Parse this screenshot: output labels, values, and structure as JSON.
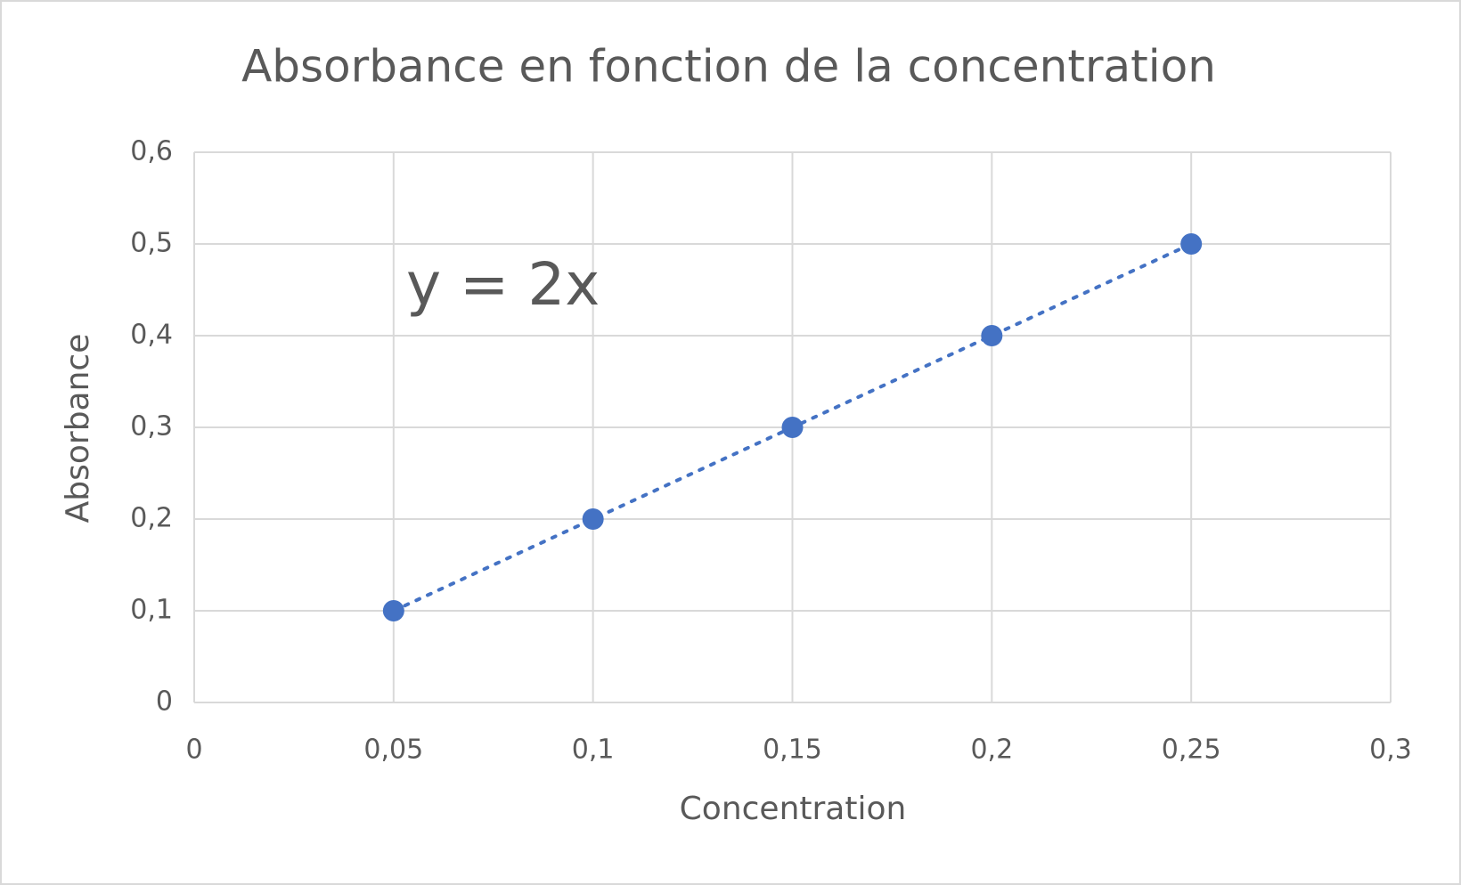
{
  "chart_data": {
    "type": "scatter",
    "title": "Absorbance en fonction de la concentration",
    "x_label": "Concentration",
    "y_label": "Absorbance",
    "series": [
      {
        "color": "#4472c4",
        "x": [
          0.05,
          0.1,
          0.15,
          0.2,
          0.25
        ],
        "values": [
          0.1,
          0.2,
          0.3,
          0.4,
          0.5
        ]
      }
    ],
    "trendline": {
      "style": "dotted",
      "label": "y = 2x"
    },
    "xlim": [
      0,
      0.3
    ],
    "xticks": [
      0,
      {
        "value": 0.05,
        "label": "0,05"
      },
      {
        "value": 0.1,
        "label": "0,1"
      },
      {
        "value": 0.15,
        "label": "0,15"
      },
      {
        "value": 0.2,
        "label": "0,2"
      },
      {
        "value": 0.25,
        "label": "0,25"
      },
      {
        "value": 0.3,
        "label": "0,3"
      }
    ],
    "ylim": [
      0,
      0.6
    ],
    "yticks": [
      0,
      {
        "value": 0.1,
        "label": "0,1"
      },
      {
        "value": 0.2,
        "label": "0,2"
      },
      {
        "value": 0.3,
        "label": "0,3"
      },
      {
        "value": 0.4,
        "label": "0,4"
      },
      {
        "value": 0.5,
        "label": "0,5"
      },
      {
        "value": 0.6,
        "label": "0,6"
      }
    ],
    "grid": true
  }
}
